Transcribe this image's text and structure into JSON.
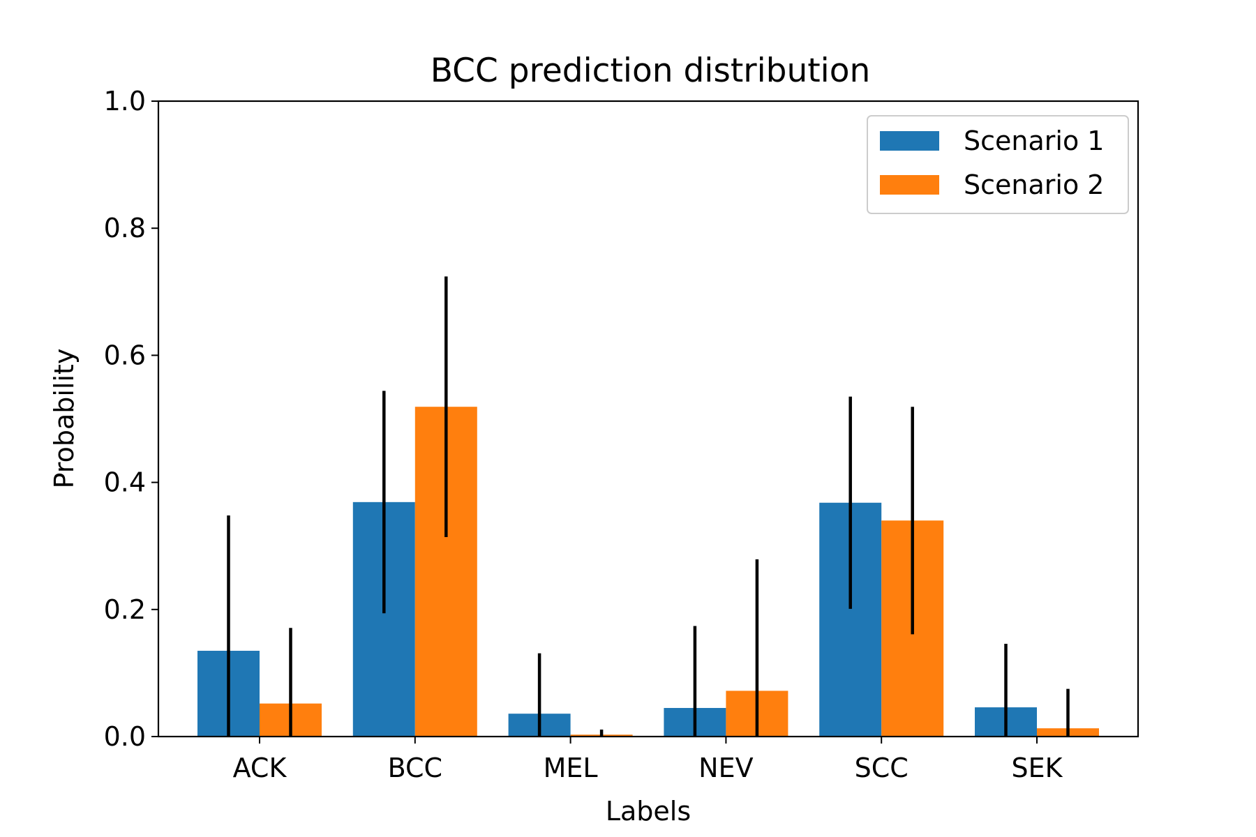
{
  "chart_data": {
    "type": "bar",
    "title": "BCC prediction distribution",
    "xlabel": "Labels",
    "ylabel": "Probability",
    "ylim": [
      0,
      1.0
    ],
    "yticks": [
      0.0,
      0.2,
      0.4,
      0.6,
      0.8,
      1.0
    ],
    "ytick_labels": [
      "0.0",
      "0.2",
      "0.4",
      "0.6",
      "0.8",
      "1.0"
    ],
    "categories": [
      "ACK",
      "BCC",
      "MEL",
      "NEV",
      "SCC",
      "SEK"
    ],
    "grid": false,
    "legend_position": "top-right",
    "series": [
      {
        "name": "Scenario 1",
        "color": "#1f77b4",
        "values": [
          0.135,
          0.369,
          0.036,
          0.045,
          0.368,
          0.046
        ],
        "errors": [
          0.213,
          0.175,
          0.095,
          0.129,
          0.167,
          0.1
        ]
      },
      {
        "name": "Scenario 2",
        "color": "#ff7f0e",
        "values": [
          0.052,
          0.519,
          0.003,
          0.072,
          0.34,
          0.013
        ],
        "errors": [
          0.119,
          0.205,
          0.008,
          0.207,
          0.179,
          0.062
        ]
      }
    ],
    "errorbar_color": "#000000"
  }
}
